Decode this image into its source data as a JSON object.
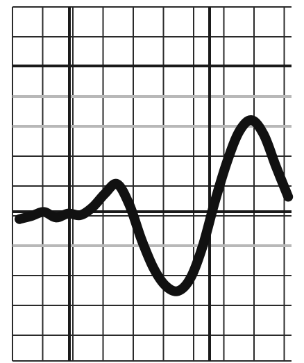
{
  "colors": {
    "background": "#ffffff",
    "minor_grid": "#2a2a2a",
    "minor_grid_light": "#b8b8b8",
    "major_grid": "#1a1a1a",
    "trace": "#111111"
  },
  "trace": {
    "description_free": true,
    "samples": [
      [
        0.0,
        0.1
      ],
      [
        0.04,
        0.3
      ],
      [
        0.08,
        0.55
      ],
      [
        0.12,
        0.2
      ],
      [
        0.16,
        0.45
      ],
      [
        0.2,
        0.35
      ],
      [
        0.24,
        0.85
      ],
      [
        0.28,
        1.7
      ],
      [
        0.32,
        2.3
      ],
      [
        0.36,
        1.0
      ],
      [
        0.4,
        -1.2
      ],
      [
        0.44,
        -3.0
      ],
      [
        0.48,
        -4.1
      ],
      [
        0.52,
        -4.4
      ],
      [
        0.56,
        -3.6
      ],
      [
        0.6,
        -1.6
      ],
      [
        0.64,
        1.2
      ],
      [
        0.68,
        3.7
      ],
      [
        0.72,
        5.6
      ],
      [
        0.76,
        6.3
      ],
      [
        0.8,
        5.4
      ],
      [
        0.84,
        3.4
      ],
      [
        0.88,
        1.5
      ]
    ]
  }
}
